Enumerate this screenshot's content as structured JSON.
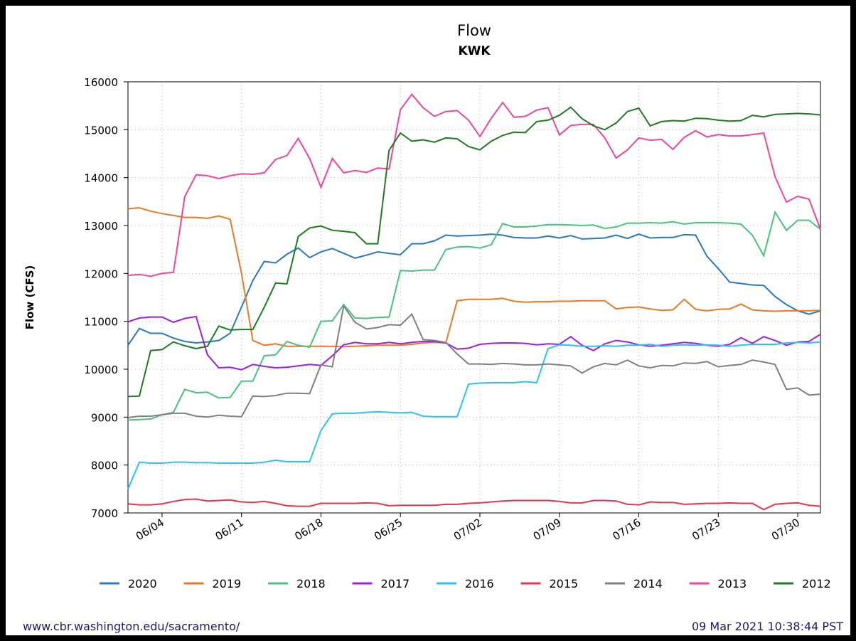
{
  "chart_data": {
    "type": "line",
    "title": "Flow",
    "subtitle": "KWK",
    "y_label": "Flow (CFS)",
    "categories": [
      null,
      null,
      null,
      "06/04",
      null,
      null,
      null,
      null,
      null,
      null,
      "06/11",
      null,
      null,
      null,
      null,
      null,
      null,
      "06/18",
      null,
      null,
      null,
      null,
      null,
      null,
      "06/25",
      null,
      null,
      null,
      null,
      null,
      null,
      "07/02",
      null,
      null,
      null,
      null,
      null,
      null,
      "07/09",
      null,
      null,
      null,
      null,
      null,
      null,
      "07/16",
      null,
      null,
      null,
      null,
      null,
      null,
      "07/23",
      null,
      null,
      null,
      null,
      null,
      null,
      "07/30",
      null,
      null
    ],
    "ylim": [
      7000,
      16000
    ],
    "yticks": [
      7000,
      8000,
      9000,
      10000,
      11000,
      12000,
      13000,
      14000,
      15000,
      16000
    ],
    "grid": true,
    "series": [
      {
        "name": "2020",
        "color": "#2a7ab9",
        "values": [
          10500,
          10850,
          10750,
          10750,
          10650,
          10580,
          10550,
          10570,
          10600,
          10750,
          11300,
          11850,
          12250,
          12220,
          12400,
          12530,
          12330,
          12450,
          12520,
          12420,
          12320,
          12380,
          12450,
          12420,
          12390,
          12620,
          12620,
          12680,
          12800,
          12780,
          12790,
          12800,
          12820,
          12800,
          12750,
          12740,
          12740,
          12780,
          12740,
          12790,
          12720,
          12730,
          12740,
          12800,
          12730,
          12820,
          12740,
          12750,
          12750,
          12810,
          12800,
          12360,
          12100,
          11820,
          11790,
          11760,
          11750,
          11520,
          11350,
          11220,
          11150,
          11220
        ]
      },
      {
        "name": "2019",
        "color": "#e87a25",
        "values": [
          13350,
          13370,
          13300,
          13250,
          13210,
          13170,
          13170,
          13150,
          13200,
          13130,
          12000,
          10600,
          10500,
          10530,
          10480,
          10480,
          10480,
          10480,
          10480,
          10470,
          10480,
          10490,
          10500,
          10500,
          10500,
          10520,
          10550,
          10560,
          10550,
          11430,
          11460,
          11460,
          11460,
          11480,
          11420,
          11400,
          11410,
          11410,
          11420,
          11420,
          11430,
          11430,
          11430,
          11260,
          11290,
          11300,
          11260,
          11230,
          11240,
          11460,
          11250,
          11220,
          11250,
          11260,
          11360,
          11240,
          11220,
          11210,
          11220,
          11220,
          11220,
          11230
        ]
      },
      {
        "name": "2018",
        "color": "#4dc280",
        "values": [
          8940,
          8950,
          8960,
          9050,
          9100,
          9580,
          9510,
          9520,
          9400,
          9410,
          9750,
          9750,
          10280,
          10300,
          10580,
          10500,
          10460,
          11000,
          11010,
          11350,
          11070,
          11060,
          11080,
          11090,
          12060,
          12050,
          12070,
          12070,
          12500,
          12550,
          12560,
          12530,
          12600,
          13040,
          12970,
          12970,
          12990,
          13020,
          13020,
          13010,
          13000,
          13010,
          12940,
          12970,
          13050,
          13050,
          13060,
          13050,
          13080,
          13030,
          13060,
          13060,
          13060,
          13050,
          13030,
          12800,
          12370,
          13280,
          12900,
          13110,
          13110,
          12920
        ]
      },
      {
        "name": "2017",
        "color": "#9b20e0",
        "values": [
          10990,
          11070,
          11090,
          11090,
          10980,
          11060,
          11100,
          10300,
          10030,
          10040,
          9990,
          10100,
          10060,
          10030,
          10040,
          10070,
          10100,
          10080,
          10280,
          10510,
          10560,
          10530,
          10530,
          10560,
          10530,
          10560,
          10580,
          10580,
          10550,
          10420,
          10440,
          10520,
          10540,
          10550,
          10550,
          10540,
          10510,
          10530,
          10520,
          10680,
          10500,
          10390,
          10530,
          10600,
          10570,
          10510,
          10480,
          10500,
          10530,
          10560,
          10540,
          10500,
          10480,
          10520,
          10660,
          10540,
          10680,
          10600,
          10500,
          10570,
          10580,
          10730
        ]
      },
      {
        "name": "2016",
        "color": "#2bc3f5",
        "values": [
          7500,
          8060,
          8040,
          8040,
          8060,
          8060,
          8050,
          8050,
          8040,
          8040,
          8040,
          8040,
          8060,
          8100,
          8070,
          8070,
          8070,
          8720,
          9070,
          9080,
          9080,
          9100,
          9110,
          9100,
          9090,
          9100,
          9020,
          9010,
          9010,
          9010,
          9690,
          9710,
          9720,
          9720,
          9720,
          9740,
          9720,
          10430,
          10510,
          10500,
          10480,
          10480,
          10490,
          10480,
          10500,
          10500,
          10520,
          10480,
          10500,
          10510,
          10500,
          10510,
          10500,
          10480,
          10500,
          10520,
          10520,
          10520,
          10550,
          10560,
          10550,
          10570
        ]
      },
      {
        "name": "2015",
        "color": "#e6364f",
        "values": [
          7190,
          7170,
          7170,
          7190,
          7240,
          7280,
          7290,
          7250,
          7260,
          7270,
          7230,
          7220,
          7240,
          7200,
          7150,
          7140,
          7140,
          7200,
          7200,
          7200,
          7200,
          7210,
          7200,
          7150,
          7160,
          7160,
          7160,
          7160,
          7180,
          7180,
          7200,
          7210,
          7230,
          7250,
          7260,
          7260,
          7260,
          7260,
          7240,
          7210,
          7210,
          7260,
          7260,
          7250,
          7180,
          7170,
          7230,
          7220,
          7220,
          7180,
          7190,
          7200,
          7200,
          7210,
          7200,
          7200,
          7070,
          7180,
          7200,
          7210,
          7160,
          7140
        ]
      },
      {
        "name": "2014",
        "color": "#808080",
        "values": [
          8990,
          9020,
          9020,
          9050,
          9080,
          9080,
          9020,
          9000,
          9040,
          9020,
          9010,
          9440,
          9430,
          9450,
          9500,
          9500,
          9490,
          10090,
          10050,
          11320,
          10980,
          10840,
          10870,
          10930,
          10920,
          11150,
          10620,
          10600,
          10560,
          10320,
          10110,
          10110,
          10100,
          10120,
          10110,
          10090,
          10090,
          10110,
          10090,
          10070,
          9920,
          10050,
          10120,
          10090,
          10190,
          10070,
          10030,
          10080,
          10070,
          10130,
          10120,
          10160,
          10050,
          10080,
          10100,
          10190,
          10150,
          10100,
          9580,
          9610,
          9460,
          9480
        ]
      },
      {
        "name": "2013",
        "color": "#f0469d",
        "values": [
          11960,
          11980,
          11940,
          12000,
          12020,
          13600,
          14060,
          14040,
          13980,
          14040,
          14080,
          14070,
          14100,
          14380,
          14460,
          14820,
          14400,
          13800,
          14400,
          14100,
          14150,
          14110,
          14200,
          14180,
          15420,
          15740,
          15460,
          15280,
          15380,
          15400,
          15200,
          14860,
          15240,
          15570,
          15260,
          15280,
          15410,
          15460,
          14890,
          15090,
          15110,
          15110,
          14830,
          14410,
          14580,
          14830,
          14780,
          14800,
          14590,
          14840,
          14980,
          14850,
          14900,
          14870,
          14870,
          14900,
          14930,
          14020,
          13490,
          13610,
          13550,
          12920
        ]
      },
      {
        "name": "2012",
        "color": "#1f7a22",
        "values": [
          9430,
          9440,
          10390,
          10410,
          10570,
          10490,
          10430,
          10480,
          10900,
          10820,
          10830,
          10830,
          11290,
          11800,
          11780,
          12770,
          12950,
          12990,
          12900,
          12880,
          12850,
          12620,
          12620,
          14570,
          14930,
          14760,
          14790,
          14740,
          14830,
          14810,
          14650,
          14580,
          14760,
          14880,
          14950,
          14940,
          15170,
          15200,
          15300,
          15470,
          15230,
          15080,
          15000,
          15140,
          15380,
          15450,
          15080,
          15170,
          15190,
          15180,
          15240,
          15230,
          15200,
          15180,
          15190,
          15300,
          15270,
          15320,
          15330,
          15340,
          15330,
          15310
        ]
      }
    ],
    "source": "www.cbr.washington.edu/sacramento/",
    "timestamp": "09 Mar 2021 10:38:44 PST"
  }
}
